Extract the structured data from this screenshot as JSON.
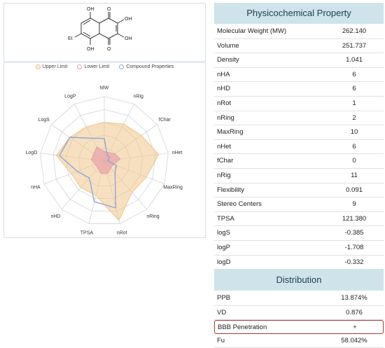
{
  "molecule": {
    "substituents": [
      "OH",
      "O",
      "OH",
      "Et",
      "OH",
      "O",
      "OH"
    ]
  },
  "legend": {
    "upper_label": "Upper Limit",
    "lower_label": "Lower Limit",
    "compound_label": "Compound Properties",
    "upper_color": "#f0c68a",
    "lower_color": "#e8a0a8",
    "compound_color": "#8ea6d8"
  },
  "radar": {
    "axes": [
      "MW",
      "nRig",
      "fChar",
      "nHet",
      "MaxRing",
      "nRing",
      "nRot",
      "TPSA",
      "nHD",
      "nHA",
      "LogD",
      "LogS",
      "LogP"
    ],
    "upper": [
      0.6,
      0.65,
      0.7,
      0.85,
      0.7,
      0.65,
      0.95,
      0.55,
      0.55,
      0.55,
      0.75,
      0.65,
      0.6
    ],
    "lower": [
      0.15,
      0.15,
      0.2,
      0.25,
      0.15,
      0.15,
      0.2,
      0.2,
      0.15,
      0.15,
      0.2,
      0.2,
      0.25
    ],
    "compound": [
      0.35,
      0.1,
      0.1,
      0.05,
      0.2,
      0.25,
      0.75,
      0.65,
      0.35,
      0.45,
      0.7,
      0.65,
      0.4
    ]
  },
  "physchem": {
    "title": "Physicochemical Property",
    "rows": [
      {
        "label": "Molecular Weight (MW)",
        "value": "262.140"
      },
      {
        "label": "Volume",
        "value": "251.737"
      },
      {
        "label": "Density",
        "value": "1.041"
      },
      {
        "label": "nHA",
        "value": "6"
      },
      {
        "label": "nHD",
        "value": "6"
      },
      {
        "label": "nRot",
        "value": "1"
      },
      {
        "label": "nRing",
        "value": "2"
      },
      {
        "label": "MaxRing",
        "value": "10"
      },
      {
        "label": "nHet",
        "value": "6"
      },
      {
        "label": "fChar",
        "value": "0"
      },
      {
        "label": "nRig",
        "value": "11"
      },
      {
        "label": "Flexibility",
        "value": "0.091"
      },
      {
        "label": "Stereo Centers",
        "value": "9"
      },
      {
        "label": "TPSA",
        "value": "121.380"
      },
      {
        "label": "logS",
        "value": "-0.385"
      },
      {
        "label": "logP",
        "value": "-1.708"
      },
      {
        "label": "logD",
        "value": "-0.332"
      }
    ]
  },
  "distribution": {
    "title": "Distribution",
    "rows": [
      {
        "label": "PPB",
        "value": "13.874%"
      },
      {
        "label": "VD",
        "value": "0.876"
      },
      {
        "label": "BBB Penetration",
        "value": "+",
        "highlight": true
      },
      {
        "label": "Fu",
        "value": "58.042%"
      }
    ]
  }
}
